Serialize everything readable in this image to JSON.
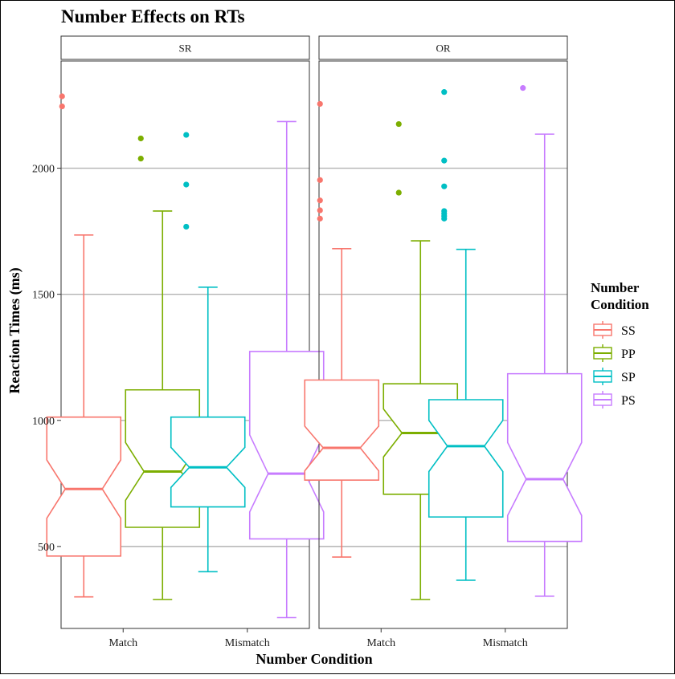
{
  "chart_data": {
    "type": "boxplot",
    "title": "Number Effects on RTs",
    "xlabel": "Number Condition",
    "ylabel": "Reaction Times (ms)",
    "ylim": [
      175,
      2425
    ],
    "yticks": [
      500,
      1000,
      1500,
      2000
    ],
    "categories": [
      "Match",
      "Mismatch"
    ],
    "notched": true,
    "grid": "horizontal major",
    "legend": {
      "title_lines": [
        "Number",
        "Condition"
      ],
      "position": "right",
      "entries": [
        {
          "name": "SS",
          "color": "#F8766D"
        },
        {
          "name": "PP",
          "color": "#7CAE00"
        },
        {
          "name": "SP",
          "color": "#00BFC4"
        },
        {
          "name": "PS",
          "color": "#C77CFF"
        }
      ]
    },
    "panels": [
      {
        "name": "SR",
        "boxes": [
          {
            "series": "SS",
            "category": "Match",
            "min": 300,
            "q1": 462,
            "median": 728,
            "q3": 1013,
            "max": 1735,
            "notch_low": 612,
            "notch_high": 843,
            "outliers": [
              2245,
              2285
            ]
          },
          {
            "series": "PP",
            "category": "Match",
            "min": 290,
            "q1": 576,
            "median": 797,
            "q3": 1121,
            "max": 1830,
            "notch_low": 683,
            "notch_high": 912,
            "outliers": [
              2038,
              2118
            ]
          },
          {
            "series": "SP",
            "category": "Mismatch",
            "min": 400,
            "q1": 657,
            "median": 814,
            "q3": 1013,
            "max": 1528,
            "notch_low": 734,
            "notch_high": 893,
            "outliers": [
              1768,
              1935,
              2132
            ]
          },
          {
            "series": "PS",
            "category": "Mismatch",
            "min": 218,
            "q1": 530,
            "median": 789,
            "q3": 1273,
            "max": 2185,
            "notch_low": 637,
            "notch_high": 942,
            "outliers": []
          }
        ]
      },
      {
        "name": "OR",
        "boxes": [
          {
            "series": "SS",
            "category": "Match",
            "min": 458,
            "q1": 763,
            "median": 891,
            "q3": 1160,
            "max": 1681,
            "notch_low": 800,
            "notch_high": 977,
            "outliers": [
              1800,
              1833,
              1872,
              1953,
              2255
            ]
          },
          {
            "series": "PP",
            "category": "Match",
            "min": 290,
            "q1": 707,
            "median": 950,
            "q3": 1145,
            "max": 1712,
            "notch_low": 855,
            "notch_high": 1045,
            "outliers": [
              1903,
              2175
            ]
          },
          {
            "series": "SP",
            "category": "Mismatch",
            "min": 366,
            "q1": 617,
            "median": 898,
            "q3": 1082,
            "max": 1678,
            "notch_low": 797,
            "notch_high": 1000,
            "outliers": [
              1800,
              1810,
              1820,
              1830,
              1928,
              2030,
              2302
            ]
          },
          {
            "series": "PS",
            "category": "Mismatch",
            "min": 303,
            "q1": 520,
            "median": 767,
            "q3": 1185,
            "max": 2135,
            "notch_low": 623,
            "notch_high": 912,
            "outliers": [
              2318
            ]
          }
        ]
      }
    ]
  }
}
